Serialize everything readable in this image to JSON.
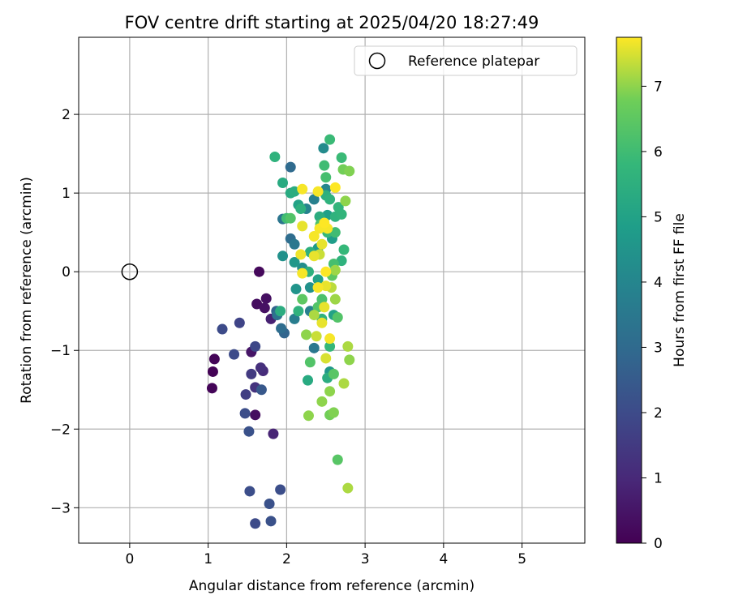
{
  "chart_data": {
    "type": "scatter",
    "title": "FOV centre drift starting at 2025/04/20 18:27:49",
    "xlabel": "Angular distance from reference (arcmin)",
    "ylabel": "Rotation from reference (arcmin)",
    "xlim": [
      -0.65,
      5.8
    ],
    "ylim": [
      -3.45,
      2.98
    ],
    "xticks": [
      0,
      1,
      2,
      3,
      4,
      5
    ],
    "yticks": [
      -3,
      -2,
      -1,
      0,
      1,
      2
    ],
    "grid": true,
    "legend_position": "top-right",
    "reference": {
      "label": "Reference platepar",
      "x": 0,
      "y": 0
    },
    "colorbar": {
      "label": "Hours from first FF file",
      "min": 0,
      "max": 7.75,
      "ticks": [
        0,
        1,
        2,
        3,
        4,
        5,
        6,
        7
      ],
      "colormap": "viridis"
    },
    "points": [
      {
        "x": 1.08,
        "y": -1.11,
        "c": 0.1
      },
      {
        "x": 1.06,
        "y": -1.27,
        "c": 0.05
      },
      {
        "x": 1.05,
        "y": -1.48,
        "c": 0.1
      },
      {
        "x": 1.65,
        "y": 0.0,
        "c": 0.2
      },
      {
        "x": 1.62,
        "y": -0.41,
        "c": 0.3
      },
      {
        "x": 1.74,
        "y": -0.34,
        "c": 0.35
      },
      {
        "x": 1.72,
        "y": -0.46,
        "c": 0.4
      },
      {
        "x": 1.6,
        "y": -1.82,
        "c": 0.3
      },
      {
        "x": 1.55,
        "y": -1.02,
        "c": 0.5
      },
      {
        "x": 1.8,
        "y": -0.6,
        "c": 0.8
      },
      {
        "x": 1.83,
        "y": -2.06,
        "c": 0.9
      },
      {
        "x": 1.67,
        "y": -1.22,
        "c": 1.2
      },
      {
        "x": 1.7,
        "y": -1.26,
        "c": 1.1
      },
      {
        "x": 1.55,
        "y": -1.3,
        "c": 1.5
      },
      {
        "x": 1.6,
        "y": -1.47,
        "c": 1.3
      },
      {
        "x": 1.48,
        "y": -1.56,
        "c": 1.6
      },
      {
        "x": 1.4,
        "y": -0.65,
        "c": 1.8
      },
      {
        "x": 1.18,
        "y": -0.73,
        "c": 2.0
      },
      {
        "x": 1.33,
        "y": -1.05,
        "c": 2.0
      },
      {
        "x": 1.6,
        "y": -0.95,
        "c": 1.9
      },
      {
        "x": 1.47,
        "y": -1.8,
        "c": 2.1
      },
      {
        "x": 1.52,
        "y": -2.03,
        "c": 2.2
      },
      {
        "x": 1.53,
        "y": -2.79,
        "c": 2.1
      },
      {
        "x": 1.6,
        "y": -3.2,
        "c": 2.0
      },
      {
        "x": 1.78,
        "y": -2.95,
        "c": 2.2
      },
      {
        "x": 1.8,
        "y": -3.17,
        "c": 2.2
      },
      {
        "x": 1.92,
        "y": -2.77,
        "c": 2.1
      },
      {
        "x": 1.68,
        "y": -1.5,
        "c": 2.4
      },
      {
        "x": 1.87,
        "y": -0.5,
        "c": 2.8
      },
      {
        "x": 1.97,
        "y": -0.78,
        "c": 2.8
      },
      {
        "x": 1.93,
        "y": -0.72,
        "c": 3.1
      },
      {
        "x": 1.88,
        "y": -0.55,
        "c": 3.3
      },
      {
        "x": 2.05,
        "y": 1.33,
        "c": 3.0
      },
      {
        "x": 2.05,
        "y": 0.42,
        "c": 3.1
      },
      {
        "x": 1.95,
        "y": 0.67,
        "c": 3.4
      },
      {
        "x": 2.1,
        "y": 0.35,
        "c": 3.5
      },
      {
        "x": 2.1,
        "y": -0.6,
        "c": 3.7
      },
      {
        "x": 2.3,
        "y": -0.5,
        "c": 3.8
      },
      {
        "x": 2.35,
        "y": -0.97,
        "c": 3.5
      },
      {
        "x": 2.25,
        "y": 0.8,
        "c": 3.9
      },
      {
        "x": 2.35,
        "y": 0.92,
        "c": 3.8
      },
      {
        "x": 2.47,
        "y": 1.57,
        "c": 4.2
      },
      {
        "x": 2.5,
        "y": 1.05,
        "c": 4.0
      },
      {
        "x": 2.2,
        "y": 0.05,
        "c": 4.3
      },
      {
        "x": 2.3,
        "y": -0.2,
        "c": 4.4
      },
      {
        "x": 1.95,
        "y": 0.2,
        "c": 4.4
      },
      {
        "x": 2.12,
        "y": -0.22,
        "c": 4.5
      },
      {
        "x": 2.55,
        "y": -1.27,
        "c": 4.6
      },
      {
        "x": 2.4,
        "y": 0.3,
        "c": 4.7
      },
      {
        "x": 2.58,
        "y": 0.42,
        "c": 4.8
      },
      {
        "x": 2.52,
        "y": 0.72,
        "c": 4.9
      },
      {
        "x": 2.6,
        "y": -0.55,
        "c": 5.0
      },
      {
        "x": 2.15,
        "y": 0.85,
        "c": 5.0
      },
      {
        "x": 2.4,
        "y": -0.1,
        "c": 5.0
      },
      {
        "x": 2.1,
        "y": 0.12,
        "c": 4.6
      },
      {
        "x": 2.27,
        "y": -1.38,
        "c": 5.3
      },
      {
        "x": 2.52,
        "y": -1.35,
        "c": 5.4
      },
      {
        "x": 1.95,
        "y": 1.13,
        "c": 5.3
      },
      {
        "x": 2.05,
        "y": 1.0,
        "c": 5.3
      },
      {
        "x": 2.1,
        "y": 1.02,
        "c": 5.4
      },
      {
        "x": 2.18,
        "y": 0.8,
        "c": 5.5
      },
      {
        "x": 2.42,
        "y": 0.7,
        "c": 5.4
      },
      {
        "x": 2.5,
        "y": 0.97,
        "c": 5.5
      },
      {
        "x": 2.55,
        "y": 0.92,
        "c": 5.6
      },
      {
        "x": 2.3,
        "y": 0.25,
        "c": 5.5
      },
      {
        "x": 2.28,
        "y": 0.0,
        "c": 5.5
      },
      {
        "x": 2.62,
        "y": 0.7,
        "c": 5.6
      },
      {
        "x": 2.66,
        "y": 0.82,
        "c": 5.7
      },
      {
        "x": 2.7,
        "y": 0.73,
        "c": 5.7
      },
      {
        "x": 2.7,
        "y": 0.14,
        "c": 5.6
      },
      {
        "x": 2.73,
        "y": 0.28,
        "c": 5.8
      },
      {
        "x": 2.52,
        "y": 0.5,
        "c": 5.8
      },
      {
        "x": 2.45,
        "y": -0.6,
        "c": 5.6
      },
      {
        "x": 2.55,
        "y": -0.95,
        "c": 5.8
      },
      {
        "x": 1.85,
        "y": 1.46,
        "c": 5.6
      },
      {
        "x": 1.92,
        "y": -0.5,
        "c": 5.4
      },
      {
        "x": 2.15,
        "y": -0.5,
        "c": 5.6
      },
      {
        "x": 2.7,
        "y": 1.45,
        "c": 5.9
      },
      {
        "x": 2.55,
        "y": 1.68,
        "c": 5.9
      },
      {
        "x": 2.48,
        "y": 1.35,
        "c": 6.0
      },
      {
        "x": 2.5,
        "y": 1.2,
        "c": 6.1
      },
      {
        "x": 2.62,
        "y": 0.5,
        "c": 6.0
      },
      {
        "x": 2.6,
        "y": 0.1,
        "c": 6.1
      },
      {
        "x": 2.45,
        "y": -0.35,
        "c": 6.2
      },
      {
        "x": 2.43,
        "y": 0.6,
        "c": 6.2
      },
      {
        "x": 2.4,
        "y": -0.45,
        "c": 6.3
      },
      {
        "x": 2.65,
        "y": -0.58,
        "c": 6.3
      },
      {
        "x": 2.6,
        "y": -1.3,
        "c": 6.4
      },
      {
        "x": 2.65,
        "y": -2.39,
        "c": 6.4
      },
      {
        "x": 2.3,
        "y": -1.15,
        "c": 6.3
      },
      {
        "x": 2.05,
        "y": 0.68,
        "c": 6.3
      },
      {
        "x": 2.0,
        "y": 0.68,
        "c": 6.0
      },
      {
        "x": 2.2,
        "y": -0.35,
        "c": 6.5
      },
      {
        "x": 2.58,
        "y": -0.05,
        "c": 6.5
      },
      {
        "x": 2.72,
        "y": 1.3,
        "c": 6.8
      },
      {
        "x": 2.8,
        "y": 1.28,
        "c": 6.9
      },
      {
        "x": 2.75,
        "y": 0.9,
        "c": 7.0
      },
      {
        "x": 2.45,
        "y": -1.65,
        "c": 7.0
      },
      {
        "x": 2.55,
        "y": -1.52,
        "c": 7.0
      },
      {
        "x": 2.55,
        "y": -1.82,
        "c": 6.8
      },
      {
        "x": 2.6,
        "y": -1.79,
        "c": 6.9
      },
      {
        "x": 2.28,
        "y": -1.83,
        "c": 7.0
      },
      {
        "x": 2.73,
        "y": -1.42,
        "c": 7.2
      },
      {
        "x": 2.78,
        "y": -0.95,
        "c": 7.2
      },
      {
        "x": 2.8,
        "y": -1.12,
        "c": 7.0
      },
      {
        "x": 2.78,
        "y": -2.75,
        "c": 7.2
      },
      {
        "x": 2.62,
        "y": -0.35,
        "c": 7.1
      },
      {
        "x": 2.62,
        "y": 0.02,
        "c": 7.1
      },
      {
        "x": 2.57,
        "y": -0.2,
        "c": 7.3
      },
      {
        "x": 2.25,
        "y": -0.8,
        "c": 7.0
      },
      {
        "x": 2.35,
        "y": -0.55,
        "c": 7.2
      },
      {
        "x": 2.38,
        "y": -0.82,
        "c": 7.4
      },
      {
        "x": 2.42,
        "y": 0.22,
        "c": 7.4
      },
      {
        "x": 2.5,
        "y": -1.1,
        "c": 7.5
      },
      {
        "x": 2.2,
        "y": 1.05,
        "c": 7.7
      },
      {
        "x": 2.4,
        "y": 1.02,
        "c": 7.7
      },
      {
        "x": 2.62,
        "y": 1.07,
        "c": 7.75
      },
      {
        "x": 2.2,
        "y": 0.58,
        "c": 7.6
      },
      {
        "x": 2.35,
        "y": 0.45,
        "c": 7.7
      },
      {
        "x": 2.42,
        "y": 0.55,
        "c": 7.7
      },
      {
        "x": 2.48,
        "y": 0.62,
        "c": 7.75
      },
      {
        "x": 2.52,
        "y": 0.55,
        "c": 7.7
      },
      {
        "x": 2.45,
        "y": 0.35,
        "c": 7.6
      },
      {
        "x": 2.35,
        "y": 0.2,
        "c": 7.6
      },
      {
        "x": 2.18,
        "y": 0.22,
        "c": 7.65
      },
      {
        "x": 2.2,
        "y": -0.02,
        "c": 7.7
      },
      {
        "x": 2.5,
        "y": 0.0,
        "c": 7.75
      },
      {
        "x": 2.4,
        "y": -0.2,
        "c": 7.7
      },
      {
        "x": 2.5,
        "y": -0.18,
        "c": 7.6
      },
      {
        "x": 2.48,
        "y": -0.45,
        "c": 7.6
      },
      {
        "x": 2.45,
        "y": -0.65,
        "c": 7.6
      },
      {
        "x": 2.55,
        "y": -0.85,
        "c": 7.7
      }
    ]
  }
}
